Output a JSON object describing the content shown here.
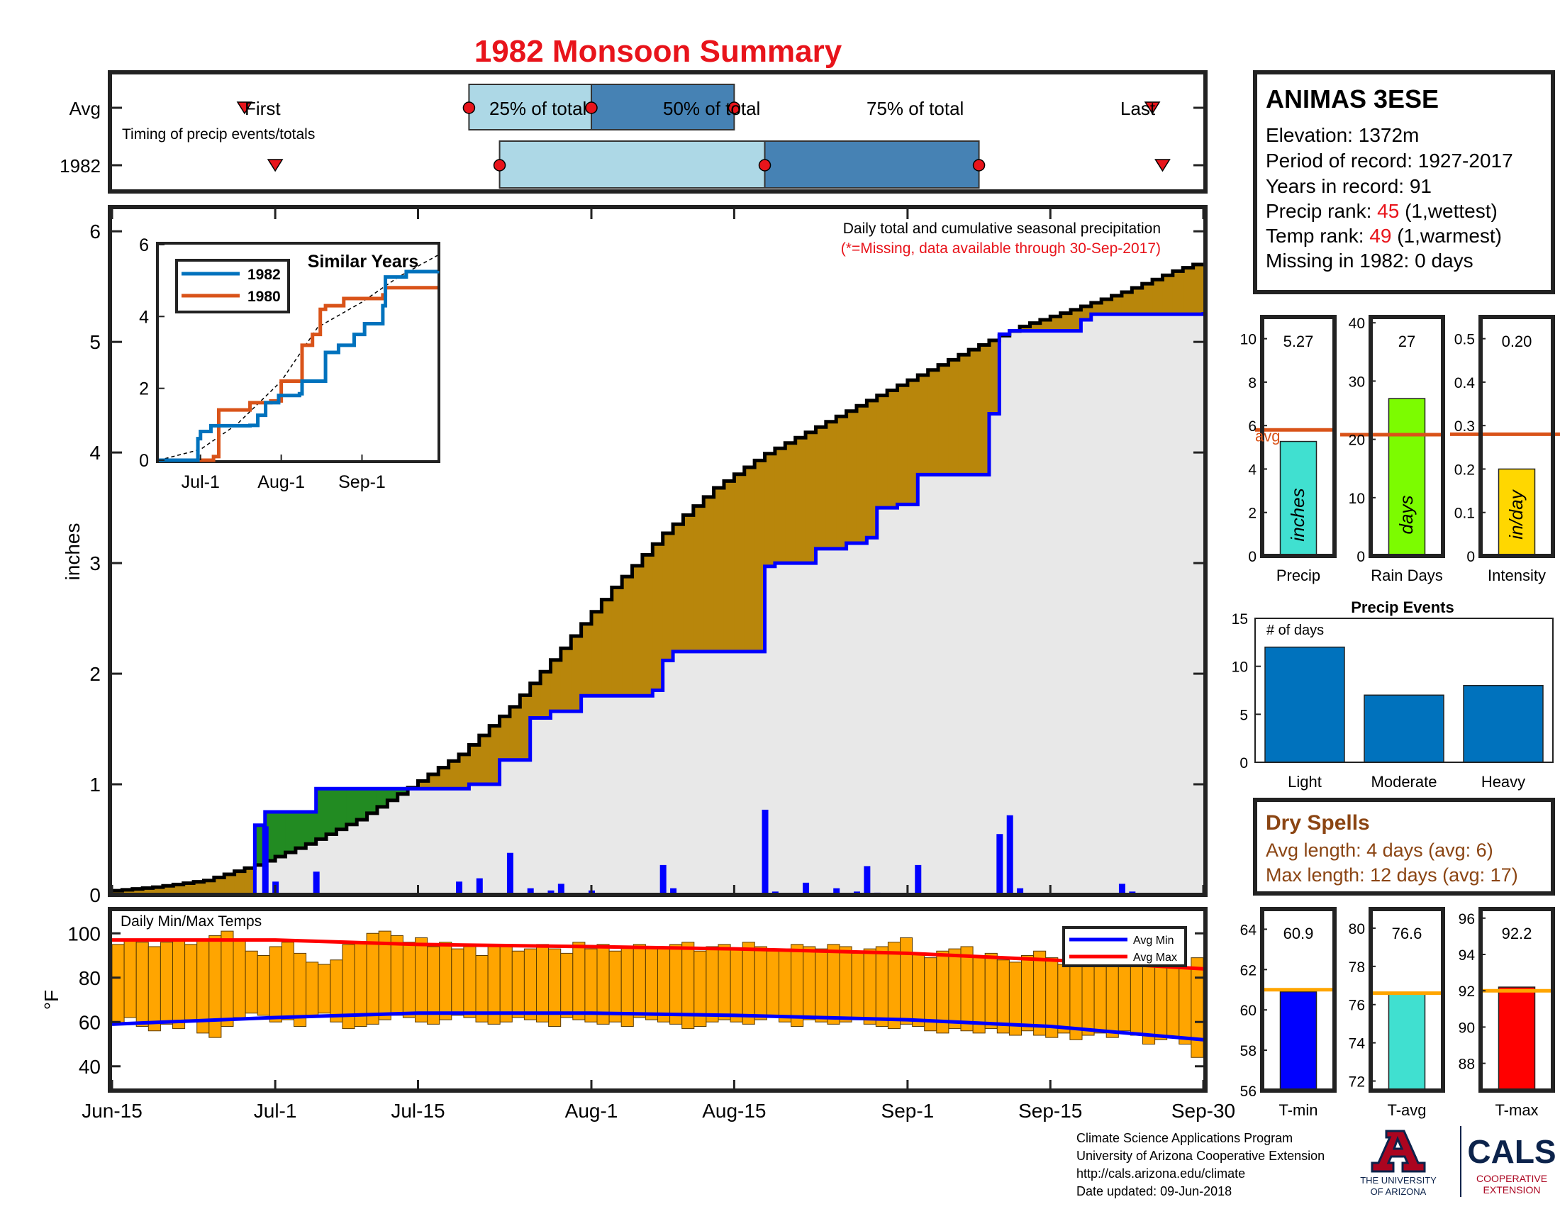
{
  "title": "1982 Monsoon Summary",
  "timing": {
    "caption": "Timing of precip events/totals",
    "row_labels": [
      "Avg",
      "1982"
    ],
    "marker_labels": {
      "first": "First",
      "p25": "25% of total",
      "p50": "50% of total",
      "p75": "75% of total",
      "last": "Last"
    },
    "avg": {
      "first": "2024-06-28",
      "p25": "2024-07-20",
      "p50": "2024-08-01",
      "p75": "2024-08-15",
      "last": "2024-09-25"
    },
    "year": {
      "first": "2024-07-01",
      "p25": "2024-07-23",
      "p50": "2024-08-18",
      "p75": "2024-09-08",
      "last": "2024-09-26"
    }
  },
  "station": {
    "name": "ANIMAS 3ESE",
    "elevation_line": "Elevation: 1372m",
    "period_line": "Period of record: 1927-2017",
    "years_line": "Years in record: 91",
    "precip_rank_label": "Precip rank: ",
    "precip_rank_value": "45",
    "precip_rank_note": " (1,wettest)",
    "temp_rank_label": "Temp rank: ",
    "temp_rank_value": "49",
    "temp_rank_note": " (1,warmest)",
    "missing_line": "Missing in 1982: 0 days"
  },
  "main_notes": {
    "line1": "Daily total and cumulative seasonal precipitation",
    "line2": "(*=Missing, data available through 30-Sep-2017)"
  },
  "dry_spells": {
    "title": "Dry Spells",
    "avg_line": "Avg length: 4 days (avg: 6)",
    "max_line": "Max length: 12 days (avg: 17)"
  },
  "footer": {
    "line1": "Climate Science Applications Program",
    "line2": "University of Arizona Cooperative Extension",
    "line3": "http://cals.arizona.edu/climate",
    "line4": " Date updated: 09-Jun-2018",
    "ua_logo_lines": [
      "THE UNIVERSITY",
      "OF ARIZONA"
    ],
    "cals_logo": "CALS",
    "cals_logo_lines": [
      "COOPERATIVE",
      "EXTENSION"
    ]
  },
  "colors": {
    "title": "#e8141b",
    "cumulative_obs": "#b8860b",
    "cumulative_green": "#228b22",
    "avg_line": "#0000ff",
    "background_fill": "#e8e8e8",
    "temp_bar": "#ffa500",
    "avg_max_line": "#ff0000",
    "avg_min_line": "#0000ff",
    "box_light": "#add8e6",
    "box_dark": "#4682b4",
    "dry_spells_text": "#8b4513",
    "precip_bar": "#40e0d0",
    "raindays_bar": "#7cfc00",
    "intensity_bar": "#ffd700",
    "events_bar": "#0072bd",
    "reference_line": "#d95319",
    "temp_ref_line": "#ffa500",
    "tmin_bar": "#0000ff",
    "tavg_bar": "#40e0d0",
    "tmax_bar": "#ff0000",
    "series_1982": "#0072bd",
    "series_1980": "#d95319",
    "logo_blue": "#0c234b",
    "logo_red": "#ab0520"
  },
  "chart_data": [
    {
      "id": "cumulative-precip",
      "type": "area",
      "ylabel": "inches",
      "ylim": [
        0,
        6.2
      ],
      "x_ticks": [
        "Jun-15",
        "Jul-1",
        "Jul-15",
        "Aug-1",
        "Aug-15",
        "Sep-1",
        "Sep-15",
        "Sep-30"
      ],
      "x_tick_dates": [
        "2024-06-15",
        "2024-07-01",
        "2024-07-15",
        "2024-08-01",
        "2024-08-15",
        "2024-09-01",
        "2024-09-15",
        "2024-09-30"
      ],
      "y_ticks": [
        0,
        1,
        2,
        3,
        4,
        5,
        6
      ],
      "avg_cumulative": [
        [
          "2024-06-15",
          0.03
        ],
        [
          "2024-06-20",
          0.07
        ],
        [
          "2024-06-25",
          0.13
        ],
        [
          "2024-06-30",
          0.27
        ],
        [
          "2024-07-05",
          0.46
        ],
        [
          "2024-07-10",
          0.68
        ],
        [
          "2024-07-15",
          0.97
        ],
        [
          "2024-07-20",
          1.27
        ],
        [
          "2024-07-25",
          1.7
        ],
        [
          "2024-07-30",
          2.23
        ],
        [
          "2024-08-04",
          2.78
        ],
        [
          "2024-08-09",
          3.27
        ],
        [
          "2024-08-14",
          3.68
        ],
        [
          "2024-08-19",
          3.99
        ],
        [
          "2024-08-24",
          4.23
        ],
        [
          "2024-08-29",
          4.47
        ],
        [
          "2024-09-03",
          4.7
        ],
        [
          "2024-09-08",
          4.93
        ],
        [
          "2024-09-13",
          5.14
        ],
        [
          "2024-09-18",
          5.29
        ],
        [
          "2024-09-23",
          5.45
        ],
        [
          "2024-09-28",
          5.64
        ],
        [
          "2024-09-30",
          5.7
        ]
      ],
      "series": [
        {
          "name": "1982 cumulative",
          "points": [
            [
              "2024-06-15",
              0
            ],
            [
              "2024-06-29",
              0.63
            ],
            [
              "2024-06-30",
              0.75
            ],
            [
              "2024-07-05",
              0.96
            ],
            [
              "2024-07-19",
              0.96
            ],
            [
              "2024-07-20",
              1.0
            ],
            [
              "2024-07-23",
              1.22
            ],
            [
              "2024-07-26",
              1.6
            ],
            [
              "2024-07-28",
              1.66
            ],
            [
              "2024-07-31",
              1.8
            ],
            [
              "2024-08-07",
              1.85
            ],
            [
              "2024-08-08",
              2.12
            ],
            [
              "2024-08-09",
              2.2
            ],
            [
              "2024-08-18",
              2.97
            ],
            [
              "2024-08-19",
              3.0
            ],
            [
              "2024-08-23",
              3.13
            ],
            [
              "2024-08-26",
              3.18
            ],
            [
              "2024-08-28",
              3.23
            ],
            [
              "2024-08-29",
              3.5
            ],
            [
              "2024-08-31",
              3.53
            ],
            [
              "2024-09-02",
              3.8
            ],
            [
              "2024-09-09",
              4.35
            ],
            [
              "2024-09-10",
              5.07
            ],
            [
              "2024-09-11",
              5.1
            ],
            [
              "2024-09-18",
              5.2
            ],
            [
              "2024-09-19",
              5.25
            ],
            [
              "2024-09-30",
              5.27
            ]
          ]
        }
      ],
      "daily_bars": [
        [
          "2024-06-30",
          0.62
        ],
        [
          "2024-07-01",
          0.12
        ],
        [
          "2024-07-05",
          0.21
        ],
        [
          "2024-07-19",
          0.12
        ],
        [
          "2024-07-21",
          0.15
        ],
        [
          "2024-07-24",
          0.38
        ],
        [
          "2024-07-26",
          0.06
        ],
        [
          "2024-07-28",
          0.04
        ],
        [
          "2024-07-29",
          0.1
        ],
        [
          "2024-08-01",
          0.04
        ],
        [
          "2024-08-08",
          0.27
        ],
        [
          "2024-08-09",
          0.06
        ],
        [
          "2024-08-18",
          0.77
        ],
        [
          "2024-08-19",
          0.03
        ],
        [
          "2024-08-22",
          0.11
        ],
        [
          "2024-08-25",
          0.06
        ],
        [
          "2024-08-27",
          0.03
        ],
        [
          "2024-08-28",
          0.26
        ],
        [
          "2024-08-29",
          0.02
        ],
        [
          "2024-09-02",
          0.27
        ],
        [
          "2024-09-10",
          0.55
        ],
        [
          "2024-09-11",
          0.72
        ],
        [
          "2024-09-12",
          0.06
        ],
        [
          "2024-09-22",
          0.1
        ],
        [
          "2024-09-23",
          0.03
        ]
      ]
    },
    {
      "id": "similar-years",
      "type": "line",
      "title": "Similar Years",
      "ylim": [
        0,
        6
      ],
      "y_ticks": [
        0,
        2,
        4,
        6
      ],
      "x_ticks": [
        "Jul-1",
        "Aug-1",
        "Sep-1"
      ],
      "x_tick_dates": [
        "2024-07-01",
        "2024-08-01",
        "2024-09-01"
      ],
      "xlim": [
        "2024-06-15",
        "2024-09-30"
      ],
      "avg_dashed": [
        [
          "2024-06-15",
          0
        ],
        [
          "2024-07-01",
          0.3
        ],
        [
          "2024-07-15",
          1.0
        ],
        [
          "2024-08-01",
          2.2
        ],
        [
          "2024-08-15",
          3.7
        ],
        [
          "2024-09-01",
          4.4
        ],
        [
          "2024-09-15",
          5.1
        ],
        [
          "2024-09-30",
          5.7
        ]
      ],
      "series": [
        {
          "name": "1982",
          "points": [
            [
              "2024-06-15",
              0
            ],
            [
              "2024-06-29",
              0
            ],
            [
              "2024-06-30",
              0.6
            ],
            [
              "2024-07-01",
              0.8
            ],
            [
              "2024-07-05",
              0.96
            ],
            [
              "2024-07-20",
              0.97
            ],
            [
              "2024-07-23",
              1.25
            ],
            [
              "2024-07-26",
              1.6
            ],
            [
              "2024-07-31",
              1.8
            ],
            [
              "2024-08-08",
              1.85
            ],
            [
              "2024-08-09",
              2.2
            ],
            [
              "2024-08-18",
              3.0
            ],
            [
              "2024-08-23",
              3.2
            ],
            [
              "2024-08-29",
              3.5
            ],
            [
              "2024-09-02",
              3.8
            ],
            [
              "2024-09-09",
              4.3
            ],
            [
              "2024-09-10",
              5.1
            ],
            [
              "2024-09-18",
              5.25
            ],
            [
              "2024-09-30",
              5.27
            ]
          ]
        },
        {
          "name": "1980",
          "points": [
            [
              "2024-06-15",
              0
            ],
            [
              "2024-07-06",
              0.1
            ],
            [
              "2024-07-08",
              1.4
            ],
            [
              "2024-07-20",
              1.6
            ],
            [
              "2024-07-28",
              1.65
            ],
            [
              "2024-08-01",
              2.2
            ],
            [
              "2024-08-06",
              2.2
            ],
            [
              "2024-08-09",
              3.2
            ],
            [
              "2024-08-13",
              3.5
            ],
            [
              "2024-08-16",
              4.2
            ],
            [
              "2024-08-18",
              4.3
            ],
            [
              "2024-08-25",
              4.5
            ],
            [
              "2024-09-09",
              4.6
            ],
            [
              "2024-09-10",
              4.8
            ],
            [
              "2024-09-30",
              4.8
            ]
          ]
        }
      ]
    },
    {
      "id": "temps",
      "type": "bar",
      "title": "Daily Min/Max Temps",
      "ylabel": "°F",
      "ylim": [
        30,
        110
      ],
      "y_ticks": [
        40,
        60,
        80,
        100
      ],
      "min_samples": [
        59,
        62,
        58,
        56,
        59,
        57,
        61,
        55,
        53,
        58,
        62,
        64,
        63,
        60,
        61,
        58,
        62,
        64,
        60,
        57,
        58,
        59,
        61,
        63,
        62,
        60,
        59,
        61,
        63,
        62,
        60,
        59,
        60,
        62,
        61,
        60,
        58,
        62,
        61,
        60,
        59,
        60,
        58,
        62,
        61,
        60,
        59,
        57,
        58,
        60,
        61,
        60,
        59,
        61,
        62,
        60,
        58,
        61,
        60,
        59,
        60,
        61,
        59,
        58,
        57,
        59,
        58,
        56,
        55,
        57,
        56,
        55,
        57,
        55,
        54,
        56,
        54,
        53,
        55,
        52,
        54,
        55,
        53,
        56,
        54,
        50,
        52,
        53,
        50,
        44
      ],
      "max_samples": [
        95,
        97,
        96,
        94,
        96,
        97,
        95,
        97,
        99,
        101,
        97,
        92,
        90,
        94,
        96,
        91,
        87,
        86,
        88,
        95,
        96,
        100,
        101,
        99,
        96,
        98,
        94,
        96,
        93,
        94,
        90,
        94,
        95,
        92,
        93,
        95,
        93,
        91,
        96,
        93,
        95,
        92,
        94,
        95,
        94,
        93,
        95,
        96,
        92,
        94,
        95,
        93,
        96,
        94,
        92,
        93,
        95,
        94,
        93,
        95,
        94,
        91,
        93,
        94,
        96,
        98,
        91,
        89,
        92,
        93,
        94,
        90,
        91,
        88,
        87,
        90,
        92,
        89,
        86,
        88,
        87,
        90,
        86,
        85,
        88,
        85,
        87,
        86,
        84,
        89
      ],
      "avg_max": [
        [
          "2024-06-15",
          97
        ],
        [
          "2024-07-01",
          97
        ],
        [
          "2024-07-15",
          95
        ],
        [
          "2024-08-01",
          94
        ],
        [
          "2024-08-15",
          93
        ],
        [
          "2024-09-01",
          91
        ],
        [
          "2024-09-15",
          88
        ],
        [
          "2024-09-30",
          84
        ]
      ],
      "avg_min": [
        [
          "2024-06-15",
          59
        ],
        [
          "2024-07-01",
          62
        ],
        [
          "2024-07-15",
          64
        ],
        [
          "2024-08-01",
          64
        ],
        [
          "2024-08-15",
          63
        ],
        [
          "2024-09-01",
          61
        ],
        [
          "2024-09-15",
          58
        ],
        [
          "2024-09-30",
          52
        ]
      ],
      "legend": [
        "Avg Min",
        "Avg Max"
      ],
      "legend_placement": "top-right"
    },
    {
      "id": "precip-total",
      "type": "bar",
      "xlabel": "Precip",
      "ylim": [
        0,
        11
      ],
      "y_ticks": [
        0,
        2,
        4,
        6,
        8,
        10
      ],
      "value": 5.27,
      "value_label": "5.27",
      "bar_text": "inches",
      "avg": 5.8,
      "avg_label": "avg"
    },
    {
      "id": "rain-days",
      "type": "bar",
      "xlabel": "Rain Days",
      "ylim": [
        0,
        41
      ],
      "y_ticks": [
        0,
        10,
        20,
        30,
        40
      ],
      "value": 27,
      "value_label": "27",
      "bar_text": "days",
      "avg": 20.8
    },
    {
      "id": "intensity",
      "type": "bar",
      "xlabel": "Intensity",
      "ylim": [
        0,
        0.55
      ],
      "y_ticks": [
        0,
        0.1,
        0.2,
        0.3,
        0.4,
        0.5
      ],
      "y_tick_labels": [
        "0",
        "0.1",
        "0.2",
        "0.3",
        "0.4",
        "0.5"
      ],
      "value": 0.2,
      "value_label": "0.20",
      "bar_text": "in/day",
      "avg": 0.28
    },
    {
      "id": "precip-events",
      "type": "bar",
      "title": "Precip Events",
      "annotation": "# of days",
      "categories": [
        "Light",
        "Moderate",
        "Heavy"
      ],
      "values": [
        12,
        7,
        8
      ],
      "ylim": [
        0,
        15
      ],
      "y_ticks": [
        0,
        5,
        10,
        15
      ]
    },
    {
      "id": "t-min",
      "type": "bar",
      "xlabel": "T-min",
      "ylim": [
        56,
        65
      ],
      "y_ticks": [
        56,
        58,
        60,
        62,
        64
      ],
      "value": 60.9,
      "value_label": "60.9",
      "avg": 61.0
    },
    {
      "id": "t-avg",
      "type": "bar",
      "xlabel": "T-avg",
      "ylim": [
        71.5,
        81
      ],
      "y_ticks": [
        72,
        74,
        76,
        78,
        80
      ],
      "value": 76.6,
      "value_label": "76.6",
      "avg": 76.6
    },
    {
      "id": "t-max",
      "type": "bar",
      "xlabel": "T-max",
      "ylim": [
        86.5,
        96.5
      ],
      "y_ticks": [
        88,
        90,
        92,
        94,
        96
      ],
      "value": 92.2,
      "value_label": "92.2",
      "avg": 92.0
    }
  ]
}
